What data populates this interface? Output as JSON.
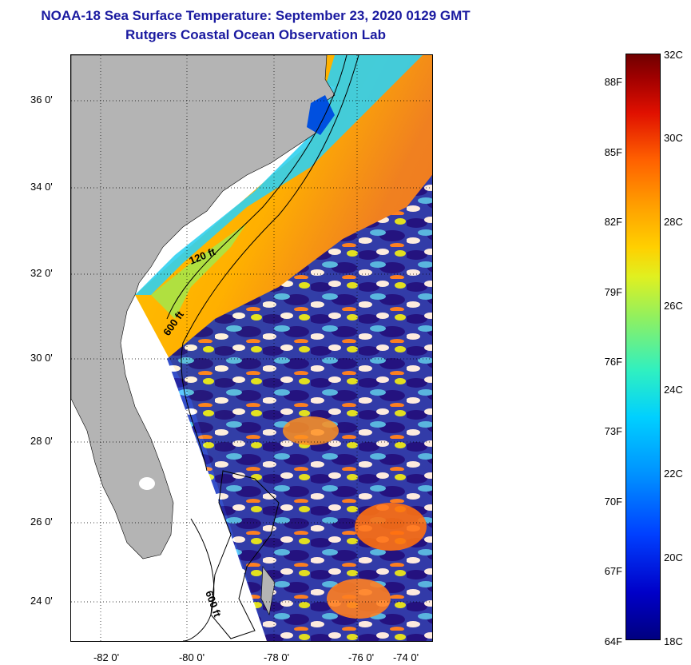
{
  "title": {
    "line1": "NOAA-18 Sea Surface Temperature:  September 23, 2020 0129 GMT",
    "line2": "Rutgers Coastal Ocean Observation Lab"
  },
  "axes": {
    "lat_labels": [
      "36 0'",
      "34 0'",
      "32 0'",
      "30 0'",
      "28 0'",
      "26 0'",
      "24 0'"
    ],
    "lon_labels": [
      "-82 0'",
      "-80 0'",
      "-78 0'",
      "-76 0'",
      "-74 0'"
    ]
  },
  "contours": {
    "label_120": "120 ft",
    "label_600_north": "600 ft",
    "label_600_south": "600 ft"
  },
  "colorbar": {
    "fahrenheit": [
      "88F",
      "85F",
      "82F",
      "79F",
      "76F",
      "73F",
      "70F",
      "67F",
      "64F"
    ],
    "celsius": [
      "32C",
      "30C",
      "28C",
      "26C",
      "24C",
      "22C",
      "20C",
      "18C"
    ]
  },
  "colors": {
    "title": "#1a1aa0",
    "land": "#b4b4b4",
    "no_data": "#ffffff",
    "cold": "#000080",
    "warm": "#ff6000"
  }
}
